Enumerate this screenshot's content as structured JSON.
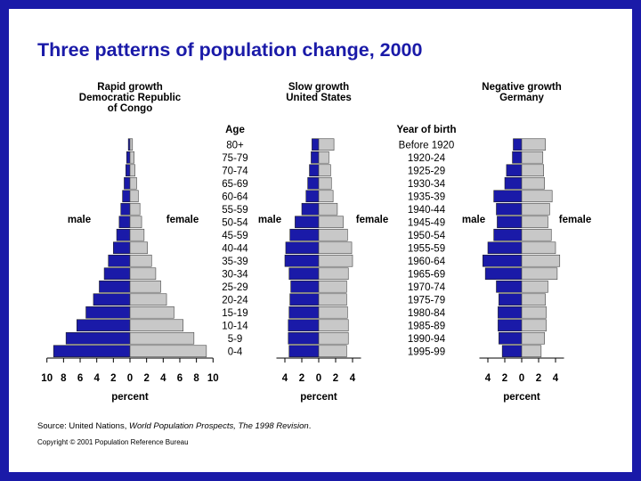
{
  "title": "Three patterns of population change, 2000",
  "colors": {
    "male": "#1a1aa8",
    "female": "#c8c8c8",
    "border": "#1a1aa8"
  },
  "labels": {
    "age_header": "Age",
    "birth_header": "Year of birth",
    "male": "male",
    "female": "female",
    "percent": "percent"
  },
  "source": {
    "prefix": "Source: United Nations, ",
    "title": "World Population Prospects, The 1998 Revision",
    "suffix": "."
  },
  "copyright": "Copyright © 2001 Population Reference Bureau",
  "chart_data": [
    {
      "type": "bar",
      "title_lines": [
        "Rapid growth",
        "Democratic Republic",
        "of Congo"
      ],
      "categories": [
        "80+",
        "75-79",
        "70-74",
        "65-69",
        "60-64",
        "55-59",
        "50-54",
        "45-59",
        "40-44",
        "35-39",
        "30-34",
        "25-29",
        "20-24",
        "15-19",
        "10-14",
        "5-9",
        "0-4"
      ],
      "series": [
        {
          "name": "male",
          "values": [
            0.2,
            0.4,
            0.5,
            0.7,
            0.9,
            1.1,
            1.3,
            1.6,
            2.0,
            2.6,
            3.1,
            3.7,
            4.4,
            5.3,
            6.4,
            7.7,
            9.2
          ]
        },
        {
          "name": "female",
          "values": [
            0.3,
            0.5,
            0.6,
            0.8,
            1.0,
            1.2,
            1.4,
            1.7,
            2.1,
            2.6,
            3.1,
            3.7,
            4.4,
            5.3,
            6.4,
            7.7,
            9.2
          ]
        }
      ],
      "xlabel": "percent",
      "xticks": [
        10,
        8,
        6,
        4,
        2,
        0,
        2,
        4,
        6,
        8,
        10
      ],
      "xlim": [
        -10,
        10
      ]
    },
    {
      "type": "bar",
      "title_lines": [
        "Slow growth",
        "United States"
      ],
      "categories": [
        "80+",
        "75-79",
        "70-74",
        "65-69",
        "60-64",
        "55-59",
        "50-54",
        "45-59",
        "40-44",
        "35-39",
        "30-34",
        "25-29",
        "20-24",
        "15-19",
        "10-14",
        "5-9",
        "0-4"
      ],
      "series": [
        {
          "name": "male",
          "values": [
            0.8,
            0.9,
            1.1,
            1.3,
            1.5,
            2.0,
            2.8,
            3.4,
            3.9,
            4.0,
            3.5,
            3.3,
            3.4,
            3.5,
            3.6,
            3.6,
            3.5
          ]
        },
        {
          "name": "female",
          "values": [
            1.8,
            1.2,
            1.4,
            1.5,
            1.7,
            2.2,
            2.9,
            3.4,
            3.9,
            4.0,
            3.5,
            3.3,
            3.3,
            3.4,
            3.5,
            3.5,
            3.3
          ]
        }
      ],
      "xlabel": "percent",
      "xticks": [
        4,
        2,
        0,
        2,
        4
      ],
      "xlim": [
        -5,
        5
      ]
    },
    {
      "type": "bar",
      "title_lines": [
        "Negative growth",
        "Germany"
      ],
      "categories": [
        "Before 1920",
        "1920-24",
        "1925-29",
        "1930-34",
        "1935-39",
        "1940-44",
        "1945-49",
        "1950-54",
        "1955-59",
        "1960-64",
        "1965-69",
        "1970-74",
        "1975-79",
        "1980-84",
        "1985-89",
        "1990-94",
        "1995-99"
      ],
      "series": [
        {
          "name": "male",
          "values": [
            1.0,
            1.1,
            1.8,
            2.0,
            3.3,
            3.0,
            2.9,
            3.3,
            4.0,
            4.6,
            4.3,
            3.0,
            2.7,
            2.8,
            2.8,
            2.7,
            2.3
          ]
        },
        {
          "name": "female",
          "values": [
            2.8,
            2.5,
            2.6,
            2.7,
            3.6,
            3.3,
            3.1,
            3.5,
            4.0,
            4.5,
            4.2,
            3.1,
            2.8,
            2.9,
            2.9,
            2.7,
            2.3
          ]
        }
      ],
      "xlabel": "percent",
      "xticks": [
        4,
        2,
        0,
        2,
        4
      ],
      "xlim": [
        -5,
        5
      ]
    }
  ]
}
